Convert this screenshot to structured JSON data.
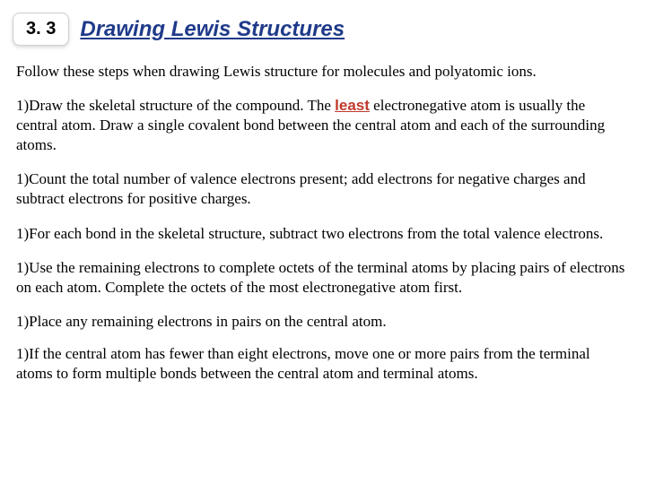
{
  "header": {
    "section_number": "3. 3",
    "title": "Drawing Lewis Structures",
    "badge_bg": "#ffffff",
    "badge_border": "#cfcfcf",
    "title_color": "#1f3a8a"
  },
  "intro": "Follow these steps when drawing Lewis structure for molecules and polyatomic ions.",
  "emphasis": {
    "least": "least",
    "color": "#c0392b"
  },
  "steps": [
    {
      "prefix": "1)Draw the skeletal structure of the compound.  The ",
      "emph": "least",
      "suffix": " electronegative atom is usually the central atom. Draw a single covalent bond between the central atom and each of the surrounding atoms."
    },
    {
      "prefix": "1)Count the total number of valence electrons present; add electrons for negative charges and subtract electrons for positive charges.",
      "emph": "",
      "suffix": ""
    },
    {
      "prefix": "1)For each bond in the skeletal structure, subtract two electrons from the total valence electrons.",
      "emph": "",
      "suffix": ""
    },
    {
      "prefix": "1)Use the remaining electrons to complete octets of the terminal atoms by placing pairs of electrons on each atom. Complete the octets of the most electronegative atom first.",
      "emph": "",
      "suffix": ""
    },
    {
      "prefix": "1)Place any remaining electrons in pairs on the central atom.",
      "emph": "",
      "suffix": ""
    },
    {
      "prefix": "1)If the central atom has fewer than eight electrons, move one or more pairs from the terminal atoms to form multiple bonds between the central atom and terminal atoms.",
      "emph": "",
      "suffix": ""
    }
  ],
  "typography": {
    "body_font": "Georgia",
    "body_size_pt": 13,
    "title_size_pt": 18,
    "badge_size_pt": 15
  },
  "colors": {
    "page_bg": "#ffffff",
    "body_text": "#000000"
  }
}
